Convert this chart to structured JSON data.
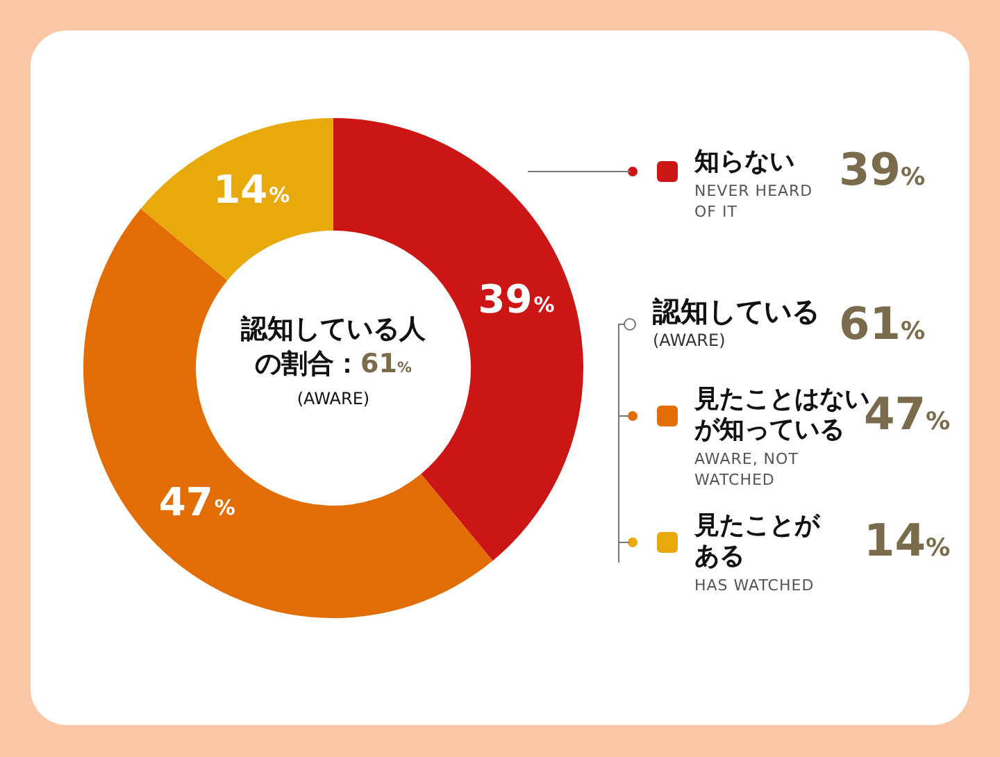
{
  "chart_data": {
    "type": "donut",
    "categories": [
      "知らない\nNEVER HEARD OF IT",
      "見たことはないが知っている\nAWARE, NOT WATCHED",
      "見たことがある\nHAS WATCHED"
    ],
    "values": [
      39,
      47,
      14
    ],
    "colors": [
      "#cc1515",
      "#e26d05",
      "#e8a90c"
    ],
    "value_labels": [
      "39%",
      "47%",
      "14%"
    ],
    "legend": "right",
    "annotations": [
      "認知している人の割合：61%\n(AWARE)",
      "認知している\n(AWARE)",
      "61%",
      "39%",
      "47%",
      "14%"
    ]
  }
}
